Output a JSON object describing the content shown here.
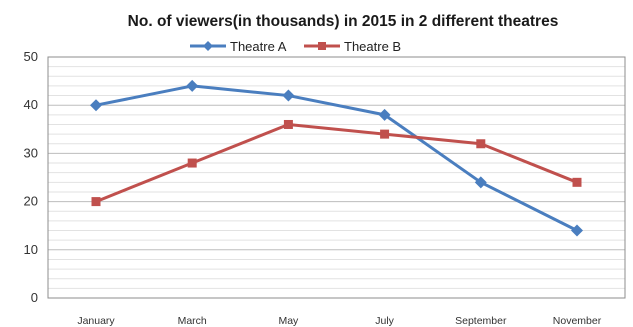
{
  "chart_data": {
    "type": "line",
    "title": "No. of viewers(in thousands) in 2015  in 2 different theatres",
    "xlabel": "",
    "ylabel": "",
    "categories": [
      "January",
      "March",
      "May",
      "July",
      "September",
      "November"
    ],
    "ylim": [
      0,
      50
    ],
    "yticks": [
      0,
      10,
      20,
      30,
      40,
      50
    ],
    "grid": true,
    "legend_position": "top",
    "series": [
      {
        "name": "Theatre A",
        "color": "#4a7ebf",
        "marker": "diamond",
        "values": [
          40,
          44,
          42,
          38,
          24,
          14
        ]
      },
      {
        "name": "Theatre B",
        "color": "#c0504d",
        "marker": "square",
        "values": [
          20,
          28,
          36,
          34,
          32,
          24
        ]
      }
    ]
  }
}
